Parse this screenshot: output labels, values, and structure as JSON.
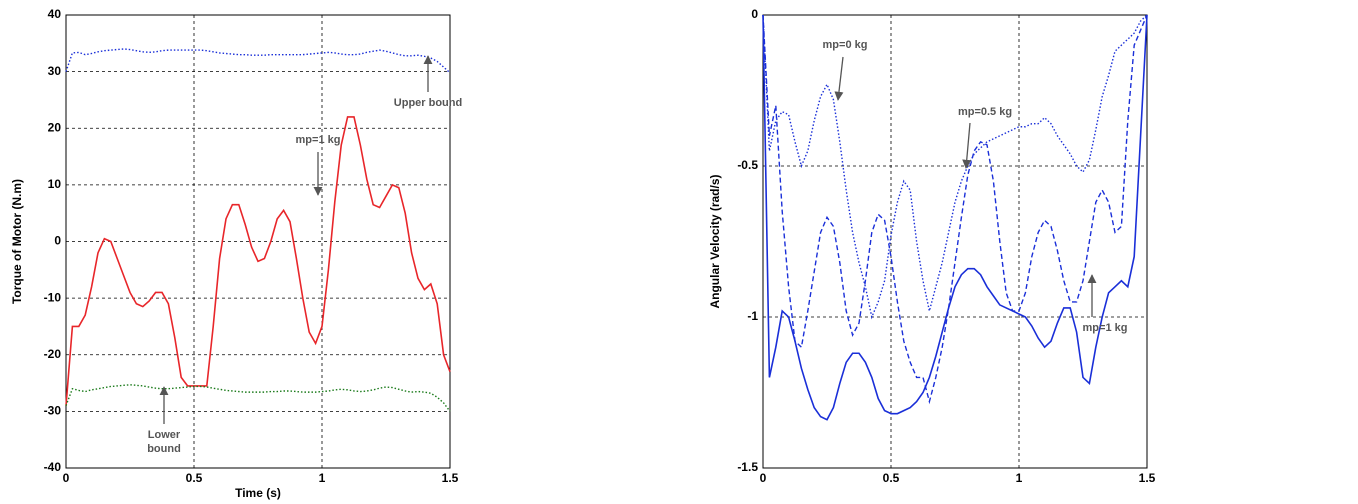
{
  "chart_data": [
    {
      "type": "line",
      "xlabel": "Time (s)",
      "ylabel": "Torque of Motor (N.m)",
      "xlim": [
        0,
        1.5
      ],
      "ylim": [
        -40,
        40
      ],
      "xticks": [
        0,
        0.5,
        1,
        1.5
      ],
      "yticks": [
        -40,
        -30,
        -20,
        -10,
        0,
        10,
        20,
        30,
        40
      ],
      "grid": true,
      "x": [
        0,
        0.025,
        0.05,
        0.075,
        0.1,
        0.125,
        0.15,
        0.175,
        0.2,
        0.225,
        0.25,
        0.275,
        0.3,
        0.325,
        0.35,
        0.375,
        0.4,
        0.425,
        0.45,
        0.475,
        0.5,
        0.525,
        0.55,
        0.575,
        0.6,
        0.625,
        0.65,
        0.675,
        0.7,
        0.725,
        0.75,
        0.775,
        0.8,
        0.825,
        0.85,
        0.875,
        0.9,
        0.925,
        0.95,
        0.975,
        1,
        1.025,
        1.05,
        1.075,
        1.1,
        1.125,
        1.15,
        1.175,
        1.2,
        1.225,
        1.25,
        1.275,
        1.3,
        1.325,
        1.35,
        1.375,
        1.4,
        1.425,
        1.45,
        1.475,
        1.5
      ],
      "series": [
        {
          "color": "#1a2fd8",
          "style": "dotted",
          "values": [
            30,
            33.3,
            33.4,
            33,
            33.2,
            33.5,
            33.7,
            33.8,
            33.9,
            34,
            33.9,
            33.7,
            33.5,
            33.4,
            33.5,
            33.7,
            33.8,
            33.8,
            33.8,
            33.8,
            33.8,
            33.8,
            33.7,
            33.5,
            33.3,
            33.2,
            33.1,
            33,
            33,
            32.9,
            32.9,
            32.9,
            33,
            33,
            33,
            33,
            33,
            33,
            33.1,
            33.2,
            33.3,
            33.4,
            33.3,
            33.1,
            33,
            33,
            33.1,
            33.4,
            33.6,
            33.8,
            33.6,
            33.3,
            33,
            32.8,
            32.8,
            32.9,
            32.7,
            32.4,
            31.8,
            30.8,
            29.8
          ]
        },
        {
          "color": "#e8262a",
          "style": "solid",
          "values": [
            -29,
            -15,
            -15,
            -13,
            -8,
            -2,
            0.5,
            0,
            -3,
            -6,
            -9,
            -11,
            -11.5,
            -10.5,
            -9,
            -9,
            -11,
            -17,
            -24,
            -25.5,
            -25.5,
            -25.5,
            -25.5,
            -15,
            -3,
            4,
            6.5,
            6.5,
            3,
            -1,
            -3.5,
            -3,
            0,
            4,
            5.5,
            3.5,
            -3,
            -10,
            -16,
            -18,
            -15,
            -5,
            7,
            17,
            22,
            22,
            17,
            11,
            6.5,
            6,
            8,
            10,
            9.5,
            5,
            -2,
            -6.5,
            -8.5,
            -7.5,
            -11,
            -20,
            -23
          ]
        },
        {
          "color": "#1a7a1a",
          "style": "dotted",
          "values": [
            -29,
            -26,
            -26.3,
            -26.5,
            -26.2,
            -26,
            -25.8,
            -25.6,
            -25.5,
            -25.4,
            -25.3,
            -25.4,
            -25.5,
            -25.7,
            -25.9,
            -26,
            -26,
            -25.9,
            -25.8,
            -25.7,
            -25.6,
            -25.6,
            -25.7,
            -25.9,
            -26.1,
            -26.3,
            -26.4,
            -26.5,
            -26.6,
            -26.6,
            -26.6,
            -26.6,
            -26.5,
            -26.5,
            -26.4,
            -26.4,
            -26.5,
            -26.6,
            -26.6,
            -26.6,
            -26.5,
            -26.4,
            -26.2,
            -26.1,
            -26.2,
            -26.4,
            -26.5,
            -26.4,
            -26.2,
            -25.9,
            -25.7,
            -25.8,
            -26.1,
            -26.4,
            -26.6,
            -26.5,
            -26.6,
            -26.8,
            -27.5,
            -28.5,
            -30
          ]
        }
      ],
      "annotations": [
        {
          "lines": [
            "Upper bound"
          ]
        },
        {
          "lines": [
            "mp=1 kg"
          ]
        },
        {
          "lines": [
            "Lower",
            "bound"
          ]
        }
      ]
    },
    {
      "type": "line",
      "ylabel": "Angular Velocity (rad/s)",
      "xlim": [
        0,
        1.5
      ],
      "ylim": [
        -1.5,
        0
      ],
      "xticks": [
        0,
        0.5,
        1,
        1.5
      ],
      "yticks": [
        -1.5,
        -1,
        -0.5,
        0
      ],
      "grid": true,
      "x": [
        0,
        0.025,
        0.05,
        0.075,
        0.1,
        0.125,
        0.15,
        0.175,
        0.2,
        0.225,
        0.25,
        0.275,
        0.3,
        0.325,
        0.35,
        0.375,
        0.4,
        0.425,
        0.45,
        0.475,
        0.5,
        0.525,
        0.55,
        0.575,
        0.6,
        0.625,
        0.65,
        0.675,
        0.7,
        0.725,
        0.75,
        0.775,
        0.8,
        0.825,
        0.85,
        0.875,
        0.9,
        0.925,
        0.95,
        0.975,
        1,
        1.025,
        1.05,
        1.075,
        1.1,
        1.125,
        1.15,
        1.175,
        1.2,
        1.225,
        1.25,
        1.275,
        1.3,
        1.325,
        1.35,
        1.375,
        1.4,
        1.425,
        1.45,
        1.475,
        1.5
      ],
      "series": [
        {
          "color": "#1a2fd8",
          "style": "dotted",
          "values": [
            0,
            -0.45,
            -0.35,
            -0.32,
            -0.33,
            -0.42,
            -0.5,
            -0.45,
            -0.35,
            -0.27,
            -0.23,
            -0.28,
            -0.42,
            -0.58,
            -0.72,
            -0.82,
            -0.9,
            -1.0,
            -0.95,
            -0.88,
            -0.73,
            -0.62,
            -0.55,
            -0.58,
            -0.75,
            -0.88,
            -0.98,
            -0.9,
            -0.82,
            -0.72,
            -0.62,
            -0.55,
            -0.5,
            -0.46,
            -0.44,
            -0.42,
            -0.41,
            -0.4,
            -0.39,
            -0.38,
            -0.37,
            -0.37,
            -0.36,
            -0.36,
            -0.34,
            -0.36,
            -0.4,
            -0.43,
            -0.46,
            -0.5,
            -0.52,
            -0.48,
            -0.38,
            -0.27,
            -0.2,
            -0.12,
            -0.1,
            -0.08,
            -0.06,
            -0.02,
            0
          ]
        },
        {
          "color": "#1a2fd8",
          "style": "dashed",
          "values": [
            0,
            -0.4,
            -0.3,
            -0.65,
            -0.9,
            -1.08,
            -1.1,
            -0.98,
            -0.85,
            -0.72,
            -0.67,
            -0.7,
            -0.82,
            -0.98,
            -1.06,
            -1.02,
            -0.88,
            -0.72,
            -0.66,
            -0.68,
            -0.8,
            -0.95,
            -1.08,
            -1.15,
            -1.2,
            -1.2,
            -1.28,
            -1.2,
            -1.1,
            -0.97,
            -0.82,
            -0.67,
            -0.53,
            -0.45,
            -0.42,
            -0.43,
            -0.55,
            -0.75,
            -0.92,
            -0.98,
            -0.98,
            -0.92,
            -0.8,
            -0.72,
            -0.68,
            -0.7,
            -0.78,
            -0.88,
            -0.95,
            -0.95,
            -0.88,
            -0.75,
            -0.62,
            -0.58,
            -0.62,
            -0.72,
            -0.7,
            -0.35,
            -0.1,
            -0.05,
            0
          ]
        },
        {
          "color": "#1a2fd8",
          "style": "solid",
          "values": [
            0,
            -1.2,
            -1.1,
            -0.98,
            -1.0,
            -1.08,
            -1.17,
            -1.24,
            -1.3,
            -1.33,
            -1.34,
            -1.3,
            -1.22,
            -1.15,
            -1.12,
            -1.12,
            -1.15,
            -1.2,
            -1.27,
            -1.31,
            -1.32,
            -1.32,
            -1.31,
            -1.3,
            -1.28,
            -1.25,
            -1.2,
            -1.13,
            -1.05,
            -0.97,
            -0.9,
            -0.86,
            -0.84,
            -0.84,
            -0.86,
            -0.9,
            -0.93,
            -0.96,
            -0.97,
            -0.98,
            -0.99,
            -1.0,
            -1.03,
            -1.07,
            -1.1,
            -1.08,
            -1.02,
            -0.97,
            -0.97,
            -1.05,
            -1.2,
            -1.22,
            -1.1,
            -1.0,
            -0.92,
            -0.9,
            -0.88,
            -0.9,
            -0.8,
            -0.4,
            0
          ]
        }
      ],
      "annotations": [
        {
          "lines": [
            "mp=0 kg"
          ]
        },
        {
          "lines": [
            "mp=0.5 kg"
          ]
        },
        {
          "lines": [
            "mp=1 kg"
          ]
        }
      ]
    }
  ]
}
